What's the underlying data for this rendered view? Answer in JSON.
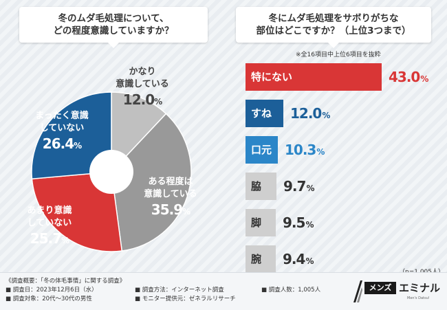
{
  "left_title": {
    "line1": "冬のムダ毛処理について、",
    "line2": "どの程度意識していますか？"
  },
  "right_title": {
    "line1": "冬にムダ毛処理をサボりがちな",
    "line2": "部位はどこですか？（上位3つまで）"
  },
  "right_note": "※全16項目中上位6項目を抜粋",
  "n_note": "（n=1,005人）",
  "unit": "%",
  "chart_data": [
    {
      "type": "pie",
      "title": "冬のムダ毛処理について、どの程度意識していますか？",
      "slices": [
        {
          "line1": "かなり",
          "line2": "意識している",
          "value": 12.0,
          "value_text": "12.0",
          "color": "#c0c0c0",
          "text_color": "#444444"
        },
        {
          "line1": "ある程度は",
          "line2": "意識している",
          "value": 35.9,
          "value_text": "35.9",
          "color": "#999999",
          "text_color": "#ffffff"
        },
        {
          "line1": "あまり意識",
          "line2": "していない",
          "value": 25.7,
          "value_text": "25.7",
          "color": "#d93636",
          "text_color": "#ffffff"
        },
        {
          "line1": "まったく意識",
          "line2": "していない",
          "value": 26.4,
          "value_text": "26.4",
          "color": "#1c5f99",
          "text_color": "#ffffff"
        }
      ]
    },
    {
      "type": "bar",
      "orientation": "horizontal",
      "title": "冬にムダ毛処理をサボりがちな部位はどこですか？（上位3つまで）",
      "categories": [
        "特にない",
        "すね",
        "口元",
        "脇",
        "脚",
        "腕"
      ],
      "values": [
        43.0,
        12.0,
        10.3,
        9.7,
        9.5,
        9.4
      ],
      "value_texts": [
        "43.0",
        "12.0",
        "10.3",
        "9.7",
        "9.5",
        "9.4"
      ],
      "colors": [
        "#d93636",
        "#1c5f99",
        "#2b86c8",
        "#cfcfcf",
        "#cfcfcf",
        "#cfcfcf"
      ],
      "label_colors": [
        "#ffffff",
        "#ffffff",
        "#ffffff",
        "#333333",
        "#333333",
        "#333333"
      ],
      "value_colors": [
        "#d93636",
        "#1c5f99",
        "#2b86c8",
        "#333333",
        "#333333",
        "#333333"
      ]
    }
  ],
  "footer": {
    "overview": "《調査概要：「冬の体毛事情」に関する調査》",
    "date": "■ 調査日：2023年12月6日（水）",
    "target": "■ 調査対象：20代〜30代の男性",
    "method": "■ 調査方法：インターネット調査",
    "provider": "■ モニター提供元：ゼネラルリサーチ",
    "count": "■ 調査人数：1,005人"
  },
  "logo": {
    "box": "メンズ",
    "name": "エミナル",
    "sub": "Men's Datsu!"
  }
}
